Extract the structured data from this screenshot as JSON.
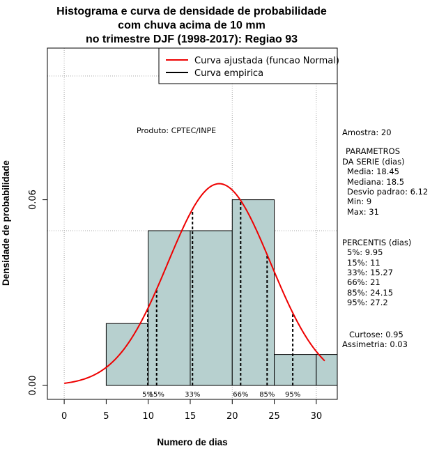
{
  "chart_data": {
    "type": "bar",
    "title": [
      "Histograma e curva de densidade de probabilidade",
      "com chuva acima de 10 mm",
      "no trimestre DJF (1998-2017): Regiao 93"
    ],
    "xlabel": "Numero de dias",
    "ylabel": "Densidade de probabilidade",
    "xlim": [
      -2,
      32.5
    ],
    "ylim": [
      -0.0045,
      0.109
    ],
    "x_ticks": [
      0,
      5,
      10,
      15,
      20,
      25,
      30
    ],
    "y_ticks": [
      0.0,
      0.06
    ],
    "y_tick_labels": [
      "0.00",
      "0.06"
    ],
    "histogram": [
      {
        "from": 5,
        "to": 10,
        "density": 0.02
      },
      {
        "from": 10,
        "to": 15,
        "density": 0.05
      },
      {
        "from": 15,
        "to": 20,
        "density": 0.05
      },
      {
        "from": 20,
        "to": 25,
        "density": 0.06
      },
      {
        "from": 25,
        "to": 30,
        "density": 0.01
      },
      {
        "from": 30,
        "to": 32.5,
        "density": 0.01
      }
    ],
    "grid_h": [
      0.05,
      0.1
    ],
    "grid_v": [
      0,
      20,
      30
    ],
    "normal_fit": {
      "mean": 18.45,
      "sd": 6.12,
      "x_from": 0,
      "x_to": 31
    },
    "percentiles": [
      {
        "label": "5%",
        "value": 9.95
      },
      {
        "label": "15%",
        "value": 11
      },
      {
        "label": "33%",
        "value": 15.27
      },
      {
        "label": "66%",
        "value": 21
      },
      {
        "label": "85%",
        "value": 24.15
      },
      {
        "label": "95%",
        "value": 27.2
      }
    ],
    "annotation": "Produto: CPTEC/INPE",
    "legend": [
      {
        "label": "Curva ajustada (funcao Normal)",
        "color": "#ee0000"
      },
      {
        "label": "Curva empirica",
        "color": "#000000"
      }
    ],
    "colors": {
      "bar_fill": "#b7d0cf",
      "curve": "#ee0000"
    }
  },
  "stats_panel": {
    "amostra": "Amostra: 20",
    "parametros_title": "PARAMETROS",
    "da_serie": "DA SERIE (dias)",
    "media": "Media: 18.45",
    "mediana": "Mediana: 18.5",
    "desvio": "Desvio padrao: 6.12",
    "min": "Min: 9",
    "max": "Max: 31",
    "percentis_title": "PERCENTIS (dias)",
    "p5": "5%: 9.95",
    "p15": "15%: 11",
    "p33": "33%: 15.27",
    "p66": "66%: 21",
    "p85": "85%: 24.15",
    "p95": "95%: 27.2",
    "curtose": "Curtose: 0.95",
    "assimetria": "Assimetria: 0.03"
  }
}
